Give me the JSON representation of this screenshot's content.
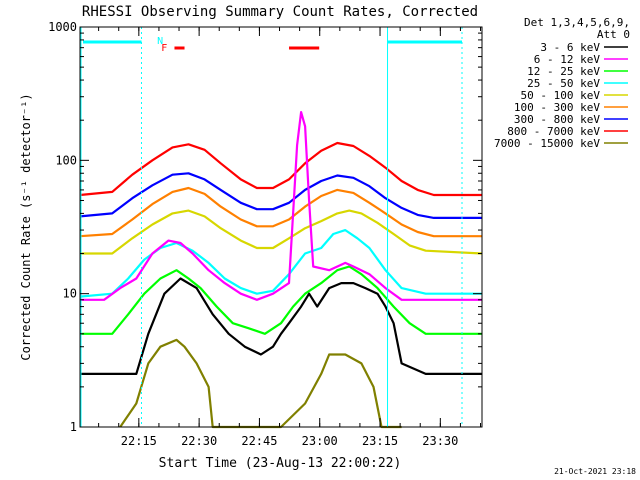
{
  "chart_data": {
    "type": "line",
    "title": "RHESSI Observing Summary Count Rates, Corrected",
    "xlabel": "Start Time (23-Aug-13 22:00:22)",
    "ylabel": "Corrected Count Rate (s⁻¹ detector⁻¹)",
    "y_scale": "log",
    "ylim": [
      1,
      1000
    ],
    "y_tick_labels": [
      "1",
      "10",
      "100",
      "1000"
    ],
    "x_range_minutes": [
      0,
      100
    ],
    "x_tick_labels": [
      "22:15",
      "22:30",
      "22:45",
      "23:00",
      "23:15",
      "23:30"
    ],
    "legend": {
      "header": [
        "Det 1,3,4,5,6,9,",
        "Att 0"
      ],
      "placement": "right"
    },
    "flags": {
      "N_label": "N",
      "F_label": "F"
    },
    "timestamp": "21-Oct-2021 23:18",
    "series": [
      {
        "name": "3 - 6 keV",
        "color": "#000000",
        "points": [
          [
            0,
            2.5
          ],
          [
            14,
            2.5
          ],
          [
            17,
            5
          ],
          [
            21,
            10
          ],
          [
            25,
            13
          ],
          [
            29,
            11
          ],
          [
            33,
            7
          ],
          [
            37,
            5
          ],
          [
            41,
            4
          ],
          [
            45,
            3.5
          ],
          [
            48,
            4
          ],
          [
            50,
            5
          ],
          [
            52,
            6
          ],
          [
            55,
            8
          ],
          [
            57,
            10
          ],
          [
            59,
            8
          ],
          [
            62,
            11
          ],
          [
            65,
            12
          ],
          [
            68,
            12
          ],
          [
            71,
            11
          ],
          [
            74,
            10
          ],
          [
            76,
            8
          ],
          [
            78,
            6
          ],
          [
            80,
            3
          ],
          [
            86,
            2.5
          ],
          [
            100,
            2.5
          ]
        ]
      },
      {
        "name": "6 - 12 keV",
        "color": "#ff00ff",
        "points": [
          [
            0,
            9
          ],
          [
            6,
            9
          ],
          [
            10,
            11
          ],
          [
            14,
            13
          ],
          [
            18,
            20
          ],
          [
            22,
            25
          ],
          [
            25,
            24
          ],
          [
            28,
            20
          ],
          [
            32,
            15
          ],
          [
            36,
            12
          ],
          [
            40,
            10
          ],
          [
            44,
            9
          ],
          [
            48,
            10
          ],
          [
            52,
            12
          ],
          [
            53,
            40
          ],
          [
            54,
            130
          ],
          [
            55,
            230
          ],
          [
            56,
            180
          ],
          [
            57,
            50
          ],
          [
            58,
            16
          ],
          [
            62,
            15
          ],
          [
            66,
            17
          ],
          [
            68,
            16
          ],
          [
            72,
            14
          ],
          [
            76,
            11
          ],
          [
            80,
            9
          ],
          [
            100,
            9
          ]
        ]
      },
      {
        "name": "12 - 25 keV",
        "color": "#00ff00",
        "points": [
          [
            0,
            5
          ],
          [
            8,
            5
          ],
          [
            12,
            7
          ],
          [
            16,
            10
          ],
          [
            20,
            13
          ],
          [
            24,
            15
          ],
          [
            27,
            13
          ],
          [
            30,
            11
          ],
          [
            34,
            8
          ],
          [
            38,
            6
          ],
          [
            42,
            5.5
          ],
          [
            46,
            5
          ],
          [
            50,
            6
          ],
          [
            53,
            8
          ],
          [
            56,
            10
          ],
          [
            60,
            12
          ],
          [
            64,
            15
          ],
          [
            67,
            16
          ],
          [
            70,
            14
          ],
          [
            74,
            11
          ],
          [
            78,
            8
          ],
          [
            82,
            6
          ],
          [
            86,
            5
          ],
          [
            100,
            5
          ]
        ]
      },
      {
        "name": "25 - 50 keV",
        "color": "#00ffff",
        "points": [
          [
            0,
            9.5
          ],
          [
            8,
            10
          ],
          [
            12,
            13
          ],
          [
            16,
            18
          ],
          [
            20,
            22
          ],
          [
            24,
            24
          ],
          [
            28,
            21
          ],
          [
            32,
            17
          ],
          [
            36,
            13
          ],
          [
            40,
            11
          ],
          [
            44,
            10
          ],
          [
            48,
            10.5
          ],
          [
            52,
            14
          ],
          [
            56,
            20
          ],
          [
            60,
            22
          ],
          [
            63,
            28
          ],
          [
            66,
            30
          ],
          [
            69,
            26
          ],
          [
            72,
            22
          ],
          [
            76,
            15
          ],
          [
            80,
            11
          ],
          [
            86,
            10
          ],
          [
            100,
            10
          ]
        ]
      },
      {
        "name": "50 - 100 keV",
        "color": "#d7d700",
        "points": [
          [
            0,
            20
          ],
          [
            8,
            20
          ],
          [
            13,
            26
          ],
          [
            18,
            33
          ],
          [
            23,
            40
          ],
          [
            27,
            42
          ],
          [
            31,
            38
          ],
          [
            35,
            31
          ],
          [
            40,
            25
          ],
          [
            44,
            22
          ],
          [
            48,
            22
          ],
          [
            52,
            26
          ],
          [
            56,
            31
          ],
          [
            60,
            35
          ],
          [
            64,
            40
          ],
          [
            67,
            42
          ],
          [
            70,
            40
          ],
          [
            74,
            34
          ],
          [
            78,
            28
          ],
          [
            82,
            23
          ],
          [
            86,
            21
          ],
          [
            100,
            20
          ]
        ]
      },
      {
        "name": "100 - 300 keV",
        "color": "#ff8000",
        "points": [
          [
            0,
            27
          ],
          [
            8,
            28
          ],
          [
            13,
            36
          ],
          [
            18,
            47
          ],
          [
            23,
            58
          ],
          [
            27,
            62
          ],
          [
            31,
            56
          ],
          [
            35,
            45
          ],
          [
            40,
            36
          ],
          [
            44,
            32
          ],
          [
            48,
            32
          ],
          [
            52,
            36
          ],
          [
            56,
            45
          ],
          [
            60,
            54
          ],
          [
            64,
            60
          ],
          [
            68,
            57
          ],
          [
            72,
            48
          ],
          [
            76,
            40
          ],
          [
            80,
            33
          ],
          [
            84,
            29
          ],
          [
            88,
            27
          ],
          [
            100,
            27
          ]
        ]
      },
      {
        "name": "300 - 800 keV",
        "color": "#0000ff",
        "points": [
          [
            0,
            38
          ],
          [
            8,
            40
          ],
          [
            13,
            52
          ],
          [
            18,
            65
          ],
          [
            23,
            78
          ],
          [
            27,
            80
          ],
          [
            31,
            72
          ],
          [
            35,
            60
          ],
          [
            40,
            48
          ],
          [
            44,
            43
          ],
          [
            48,
            43
          ],
          [
            52,
            48
          ],
          [
            56,
            60
          ],
          [
            60,
            70
          ],
          [
            64,
            77
          ],
          [
            68,
            74
          ],
          [
            72,
            64
          ],
          [
            76,
            52
          ],
          [
            80,
            44
          ],
          [
            84,
            39
          ],
          [
            88,
            37
          ],
          [
            100,
            37
          ]
        ]
      },
      {
        "name": "800 - 7000 keV",
        "color": "#ff0000",
        "points": [
          [
            0,
            55
          ],
          [
            8,
            58
          ],
          [
            13,
            78
          ],
          [
            18,
            100
          ],
          [
            23,
            125
          ],
          [
            27,
            132
          ],
          [
            31,
            120
          ],
          [
            35,
            95
          ],
          [
            40,
            72
          ],
          [
            44,
            62
          ],
          [
            48,
            62
          ],
          [
            52,
            72
          ],
          [
            56,
            95
          ],
          [
            60,
            118
          ],
          [
            64,
            135
          ],
          [
            68,
            128
          ],
          [
            72,
            108
          ],
          [
            76,
            88
          ],
          [
            80,
            70
          ],
          [
            84,
            60
          ],
          [
            88,
            55
          ],
          [
            100,
            55
          ]
        ]
      },
      {
        "name": "7000 - 15000 keV",
        "color": "#808000",
        "points": [
          [
            10,
            1
          ],
          [
            14,
            1.5
          ],
          [
            17,
            3
          ],
          [
            20,
            4
          ],
          [
            24,
            4.5
          ],
          [
            26,
            4
          ],
          [
            29,
            3
          ],
          [
            32,
            2
          ],
          [
            33,
            1
          ],
          [
            36,
            1
          ],
          [
            46,
            1
          ],
          [
            50,
            1
          ],
          [
            56,
            1.5
          ],
          [
            60,
            2.5
          ],
          [
            62,
            3.5
          ],
          [
            66,
            3.5
          ],
          [
            70,
            3
          ],
          [
            73,
            2
          ],
          [
            75,
            1
          ],
          [
            80,
            1
          ]
        ]
      }
    ]
  }
}
